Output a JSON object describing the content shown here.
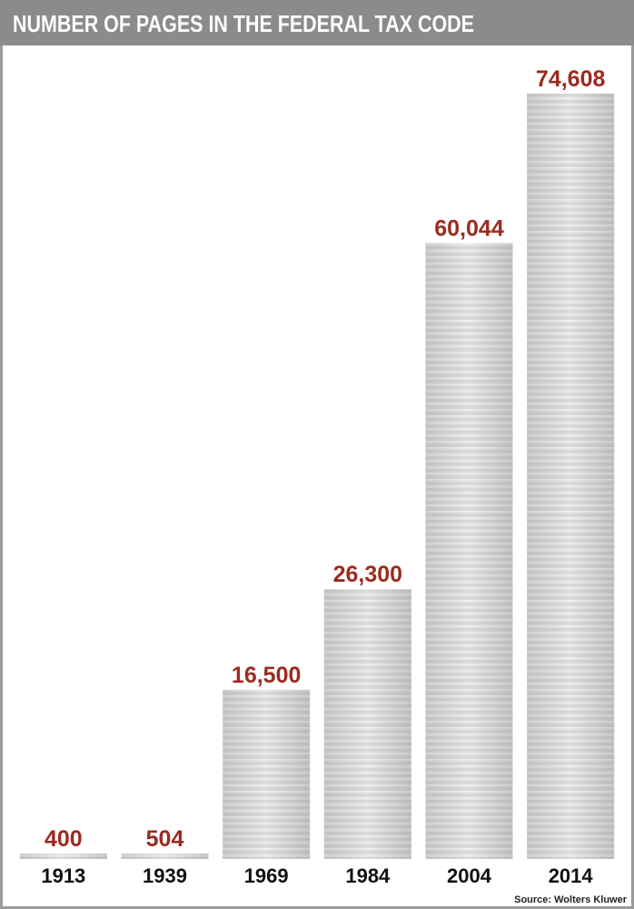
{
  "chart_data": {
    "type": "bar",
    "title": "NUMBER OF PAGES IN THE FEDERAL TAX CODE",
    "categories": [
      "1913",
      "1939",
      "1969",
      "1984",
      "2004",
      "2014"
    ],
    "values": [
      400,
      504,
      16500,
      26300,
      60044,
      74608
    ],
    "value_labels": [
      "400",
      "504",
      "16,500",
      "26,300",
      "60,044",
      "74,608"
    ],
    "label_color": "#9b2b1f",
    "source": "Source: Wolters Kluwer"
  }
}
